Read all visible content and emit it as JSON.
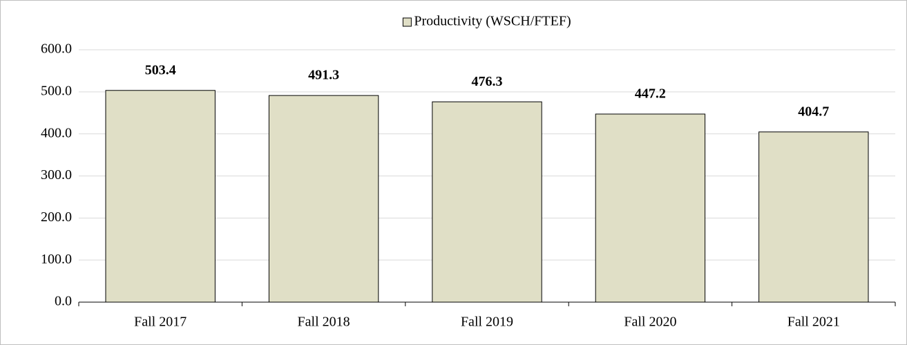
{
  "chart_data": {
    "type": "bar",
    "categories": [
      "Fall 2017",
      "Fall 2018",
      "Fall 2019",
      "Fall 2020",
      "Fall 2021"
    ],
    "series": [
      {
        "name": "Productivity (WSCH/FTEF)",
        "color": "#e0dfc6",
        "values": [
          503.4,
          491.3,
          476.3,
          447.2,
          404.7
        ]
      }
    ],
    "ylim": [
      0,
      600
    ],
    "yticks": [
      {
        "value": 0,
        "label": "0.0"
      },
      {
        "value": 100,
        "label": "100.0"
      },
      {
        "value": 200,
        "label": "200.0"
      },
      {
        "value": 300,
        "label": "300.0"
      },
      {
        "value": 400,
        "label": "400.0"
      },
      {
        "value": 500,
        "label": "500.0"
      },
      {
        "value": 600,
        "label": "600.0"
      }
    ],
    "grid": true,
    "legend": "top"
  }
}
